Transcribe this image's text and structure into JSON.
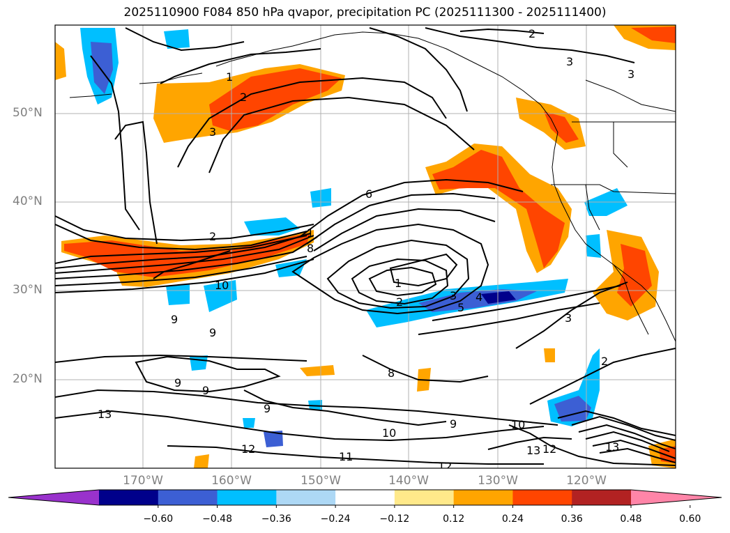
{
  "title": "2025110900 F084 850 hPa qvapor, precipitation PC (2025111300 - 2025111400)",
  "lat_labels": [
    "50°N",
    "40°N",
    "30°N",
    "20°N"
  ],
  "lon_labels": [
    "170°W",
    "160°W",
    "150°W",
    "140°W",
    "130°W",
    "120°W"
  ],
  "colorbar": {
    "ticks": [
      "−0.60",
      "−0.48",
      "−0.36",
      "−0.24",
      "−0.12",
      "0.12",
      "0.24",
      "0.36",
      "0.48",
      "0.60"
    ],
    "colors": [
      "#9932cc",
      "#00008b",
      "#3c5fd4",
      "#00bfff",
      "#add8f5",
      "#ffffff",
      "#ffe98a",
      "#ffa500",
      "#ff4500",
      "#b22222",
      "#ff85a8"
    ]
  },
  "contour_labels": {
    "c_2a": "2",
    "c_2b": "2",
    "c_2c": "2",
    "c_2d": "2",
    "c_2e": "2",
    "c_3a": "3",
    "c_3b": "3",
    "c_3c": "3",
    "c_3d": "3",
    "c_3e": "3",
    "c_1a": "1",
    "c_1b": "1",
    "c_1c": "1",
    "c_4": "4",
    "c_5": "5",
    "c_6": "6",
    "c_8a": "8",
    "c_8b": "8",
    "c_9a": "9",
    "c_9b": "9",
    "c_9c": "9",
    "c_9d": "9",
    "c_9e": "9",
    "c_9f": "9",
    "c_10a": "10",
    "c_10b": "10",
    "c_10c": "10",
    "c_11": "11",
    "c_12a": "12",
    "c_12b": "12",
    "c_12c": "12",
    "c_13a": "13",
    "c_13b": "13",
    "c_13c": "13"
  }
}
